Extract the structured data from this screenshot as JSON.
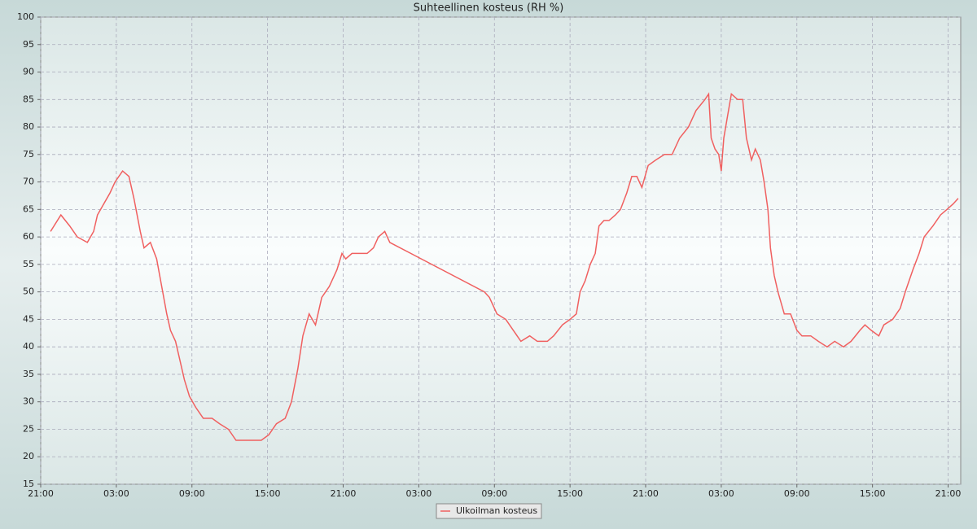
{
  "chart_data": {
    "type": "line",
    "title": "Suhteellinen kosteus (RH %)",
    "x": [
      0.78,
      1.6,
      2.3,
      2.9,
      3.7,
      4.2,
      4.5,
      5.0,
      5.5,
      5.9,
      6.5,
      7.0,
      7.4,
      7.9,
      8.2,
      8.7,
      9.2,
      9.6,
      10.0,
      10.3,
      10.7,
      11.0,
      11.4,
      11.8,
      12.3,
      12.9,
      13.6,
      14.2,
      14.9,
      15.5,
      16.2,
      16.8,
      17.5,
      18.1,
      18.7,
      19.4,
      19.9,
      20.4,
      20.8,
      21.3,
      21.8,
      22.3,
      22.9,
      23.5,
      23.9,
      24.2,
      24.7,
      25.2,
      25.9,
      26.4,
      26.8,
      27.3,
      27.7,
      35.2,
      35.6,
      36.2,
      36.9,
      37.5,
      38.1,
      38.8,
      39.4,
      40.2,
      40.7,
      41.4,
      42.0,
      42.5,
      42.8,
      43.2,
      43.6,
      44.0,
      44.3,
      44.7,
      45.1,
      45.6,
      46.0,
      46.5,
      46.9,
      47.3,
      47.7,
      48.2,
      48.8,
      49.5,
      50.1,
      50.7,
      51.4,
      52.0,
      52.7,
      53.0,
      53.2,
      53.5,
      53.8,
      54.0,
      54.2,
      54.5,
      54.8,
      55.3,
      55.7,
      56.0,
      56.4,
      56.7,
      57.1,
      57.4,
      57.7,
      57.9,
      58.2,
      58.5,
      59.0,
      59.5,
      60.0,
      60.4,
      61.1,
      61.7,
      62.4,
      63.0,
      63.7,
      64.3,
      65.0,
      65.4,
      65.9,
      66.5,
      66.9,
      67.6,
      68.2,
      68.6,
      69.2,
      69.7,
      70.1,
      70.8,
      71.4,
      71.9,
      72.4,
      72.8
    ],
    "series": [
      {
        "name": "Ulkoilman kosteus",
        "color": "#f06060",
        "values": [
          61,
          64,
          62,
          60,
          59,
          61,
          64,
          66,
          68,
          70,
          72,
          71,
          67,
          61,
          58,
          59,
          56,
          51,
          46,
          43,
          41,
          38,
          34,
          31,
          29,
          27,
          27,
          26,
          25,
          23,
          23,
          23,
          23,
          24,
          26,
          27,
          30,
          36,
          42,
          46,
          44,
          49,
          51,
          54,
          57,
          56,
          57,
          57,
          57,
          58,
          60,
          61,
          59,
          50,
          49,
          46,
          45,
          43,
          41,
          42,
          41,
          41,
          42,
          44,
          45,
          46,
          50,
          52,
          55,
          57,
          62,
          63,
          63,
          64,
          65,
          68,
          71,
          71,
          69,
          73,
          74,
          75,
          75,
          78,
          80,
          83,
          85,
          86,
          78,
          76,
          75,
          72,
          78,
          82,
          86,
          85,
          85,
          78,
          74,
          76,
          74,
          70,
          65,
          58,
          53,
          50,
          46,
          46,
          43,
          42,
          42,
          41,
          40,
          41,
          40,
          41,
          43,
          44,
          43,
          42,
          44,
          45,
          47,
          50,
          54,
          57,
          60,
          62,
          64,
          65,
          66,
          67
        ]
      }
    ],
    "xlim": [
      0,
      73
    ],
    "xticks": [
      {
        "value": 0,
        "label": "21:00"
      },
      {
        "value": 6,
        "label": "03:00"
      },
      {
        "value": 12,
        "label": "09:00"
      },
      {
        "value": 18,
        "label": "15:00"
      },
      {
        "value": 24,
        "label": "21:00"
      },
      {
        "value": 30,
        "label": "03:00"
      },
      {
        "value": 36,
        "label": "09:00"
      },
      {
        "value": 42,
        "label": "15:00"
      },
      {
        "value": 48,
        "label": "21:00"
      },
      {
        "value": 54,
        "label": "03:00"
      },
      {
        "value": 60,
        "label": "09:00"
      },
      {
        "value": 66,
        "label": "15:00"
      },
      {
        "value": 72,
        "label": "21:00"
      }
    ],
    "ylim": [
      15,
      100
    ],
    "yticks": [
      15,
      20,
      25,
      30,
      35,
      40,
      45,
      50,
      55,
      60,
      65,
      70,
      75,
      80,
      85,
      90,
      95,
      100
    ],
    "grid": true
  }
}
